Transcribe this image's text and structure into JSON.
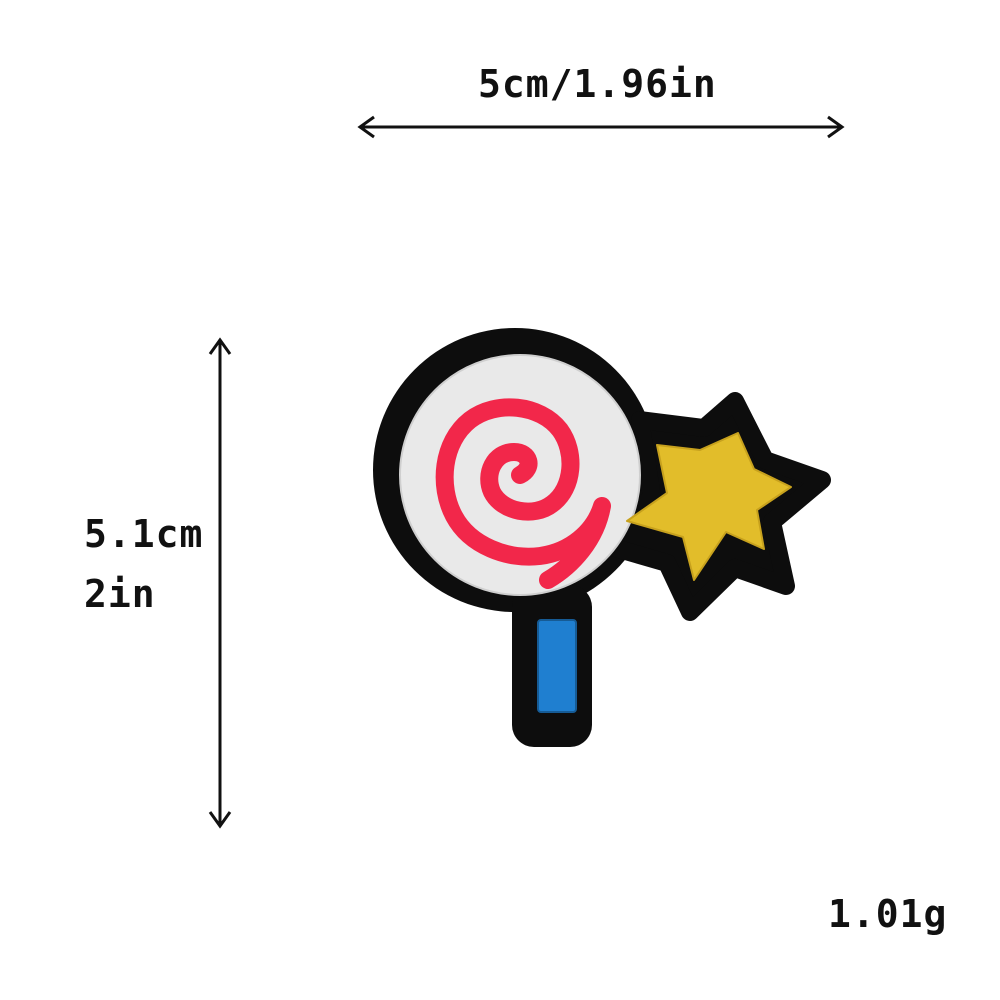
{
  "dimensions": {
    "width_label": "5cm/1.96in",
    "height_label_cm": "5.1cm",
    "height_label_in": "2in",
    "weight_label": "1.01g"
  },
  "product": {
    "name_icon": "lollipop-star-patch",
    "colors": {
      "outline": "#0d0d0d",
      "candy_base": "#e9e9e9",
      "swirl": "#f2274a",
      "star": "#e2bd2a",
      "stick": "#1f7fd0"
    }
  }
}
